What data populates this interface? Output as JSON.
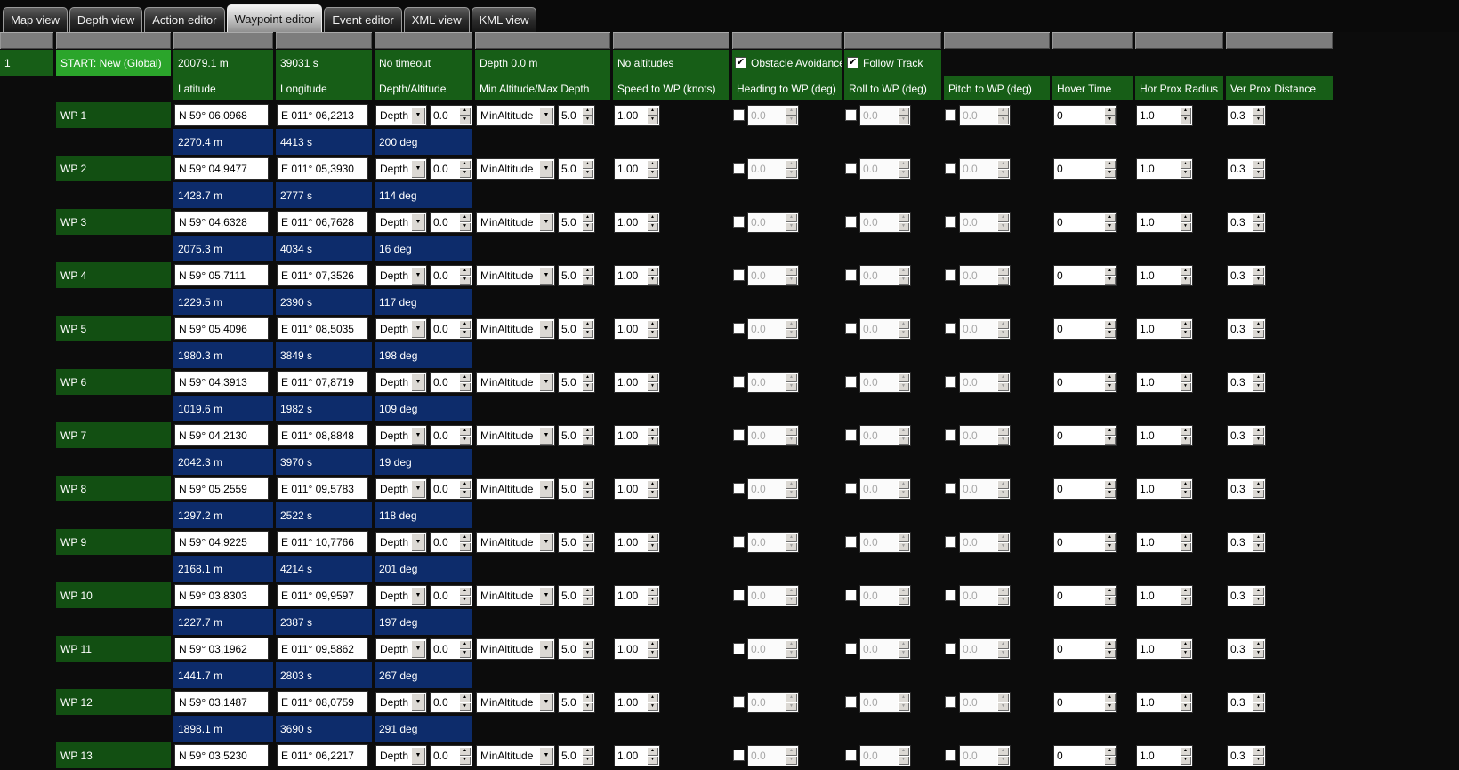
{
  "tabs": [
    {
      "label": "Map view",
      "active": false
    },
    {
      "label": "Depth view",
      "active": false
    },
    {
      "label": "Action editor",
      "active": false
    },
    {
      "label": "Waypoint editor",
      "active": true
    },
    {
      "label": "Event editor",
      "active": false
    },
    {
      "label": "XML view",
      "active": false
    },
    {
      "label": "KML view",
      "active": false
    }
  ],
  "colors": {
    "background": "#0c0c0c",
    "row_green": "#175e17",
    "selected_green": "#2ba52b",
    "wp_label_green": "#124f12",
    "segment_blue": "#0d2c6b",
    "gray_band": "#7d7d7d"
  },
  "start_row": {
    "index": "1",
    "label": "START: New (Global)",
    "total_distance": "20079.1 m",
    "total_time": "39031 s",
    "timeout": "No timeout",
    "depth": "Depth 0.0 m",
    "altitudes": "No altitudes",
    "obstacle_avoidance": {
      "label": "Obstacle Avoidance",
      "checked": true
    },
    "follow_track": {
      "label": "Follow Track",
      "checked": true
    }
  },
  "columns": [
    "Latitude",
    "Longitude",
    "Depth/Altitude",
    "Min Altitude/Max Depth",
    "Speed to WP (knots)",
    "Heading to WP (deg)",
    "Roll to WP (deg)",
    "Pitch to WP (deg)",
    "Hover Time",
    "Hor Prox Radius",
    "Ver Prox Distance"
  ],
  "row_values": {
    "depth_mode": "Depth",
    "depth": "0.0",
    "altitude_mode": "MinAltitude",
    "min_altitude": "5.0",
    "speed": "1.00",
    "heading_enabled": false,
    "heading": "0.0",
    "roll_enabled": false,
    "roll": "0.0",
    "pitch_enabled": false,
    "pitch": "0.0",
    "hover_time": "0",
    "hor_prox_radius": "1.0",
    "ver_prox_distance": "0.3"
  },
  "waypoints": [
    {
      "name": "WP 1",
      "lat": "N 59° 06,0968",
      "lon": "E 011° 06,2213"
    },
    {
      "name": "WP 2",
      "lat": "N 59° 04,9477",
      "lon": "E 011° 05,3930"
    },
    {
      "name": "WP 3",
      "lat": "N 59° 04,6328",
      "lon": "E 011° 06,7628"
    },
    {
      "name": "WP 4",
      "lat": "N 59° 05,7111",
      "lon": "E 011° 07,3526"
    },
    {
      "name": "WP 5",
      "lat": "N 59° 05,4096",
      "lon": "E 011° 08,5035"
    },
    {
      "name": "WP 6",
      "lat": "N 59° 04,3913",
      "lon": "E 011° 07,8719"
    },
    {
      "name": "WP 7",
      "lat": "N 59° 04,2130",
      "lon": "E 011° 08,8848"
    },
    {
      "name": "WP 8",
      "lat": "N 59° 05,2559",
      "lon": "E 011° 09,5783"
    },
    {
      "name": "WP 9",
      "lat": "N 59° 04,9225",
      "lon": "E 011° 10,7766"
    },
    {
      "name": "WP 10",
      "lat": "N 59° 03,8303",
      "lon": "E 011° 09,9597"
    },
    {
      "name": "WP 11",
      "lat": "N 59° 03,1962",
      "lon": "E 011° 09,5862"
    },
    {
      "name": "WP 12",
      "lat": "N 59° 03,1487",
      "lon": "E 011° 08,0759"
    },
    {
      "name": "WP 13",
      "lat": "N 59° 03,5230",
      "lon": "E 011° 06,2217"
    }
  ],
  "segments": [
    {
      "distance": "2270.4 m",
      "time": "4413 s",
      "bearing": "200 deg"
    },
    {
      "distance": "1428.7 m",
      "time": "2777 s",
      "bearing": "114 deg"
    },
    {
      "distance": "2075.3 m",
      "time": "4034 s",
      "bearing": "16 deg"
    },
    {
      "distance": "1229.5 m",
      "time": "2390 s",
      "bearing": "117 deg"
    },
    {
      "distance": "1980.3 m",
      "time": "3849 s",
      "bearing": "198 deg"
    },
    {
      "distance": "1019.6 m",
      "time": "1982 s",
      "bearing": "109 deg"
    },
    {
      "distance": "2042.3 m",
      "time": "3970 s",
      "bearing": "19 deg"
    },
    {
      "distance": "1297.2 m",
      "time": "2522 s",
      "bearing": "118 deg"
    },
    {
      "distance": "2168.1 m",
      "time": "4214 s",
      "bearing": "201 deg"
    },
    {
      "distance": "1227.7 m",
      "time": "2387 s",
      "bearing": "197 deg"
    },
    {
      "distance": "1441.7 m",
      "time": "2803 s",
      "bearing": "267 deg"
    },
    {
      "distance": "1898.1 m",
      "time": "3690 s",
      "bearing": "291 deg"
    }
  ]
}
